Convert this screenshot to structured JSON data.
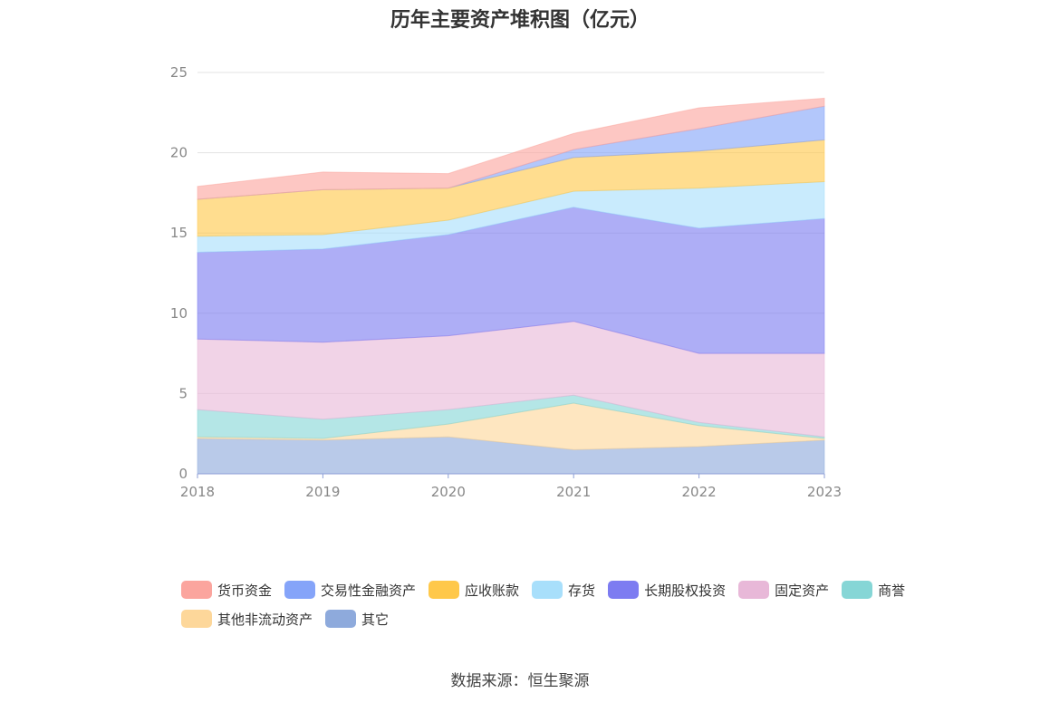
{
  "chart_data": {
    "type": "area",
    "stacked": true,
    "title": "历年主要资产堆积图（亿元）",
    "categories": [
      "2018",
      "2019",
      "2020",
      "2021",
      "2022",
      "2023"
    ],
    "ylim": [
      0,
      25
    ],
    "yticks": [
      "0",
      "5",
      "10",
      "15",
      "20",
      "25"
    ],
    "grid": true,
    "legend_position": "bottom",
    "series": [
      {
        "name": "其它",
        "color": "#8eaadc",
        "values": [
          2.2,
          2.1,
          2.3,
          1.5,
          1.7,
          2.1
        ]
      },
      {
        "name": "其他非流动资产",
        "color": "#fdd79a",
        "values": [
          0.1,
          0.1,
          0.8,
          2.9,
          1.3,
          0.1
        ]
      },
      {
        "name": "商誉",
        "color": "#86d6d6",
        "values": [
          1.7,
          1.2,
          0.9,
          0.5,
          0.2,
          0.1
        ]
      },
      {
        "name": "固定资产",
        "color": "#e8b8d8",
        "values": [
          4.4,
          4.8,
          4.6,
          4.6,
          4.3,
          5.2
        ]
      },
      {
        "name": "长期股权投资",
        "color": "#7d7cf1",
        "values": [
          5.4,
          5.8,
          6.3,
          7.1,
          7.8,
          8.4
        ]
      },
      {
        "name": "存货",
        "color": "#a8dffb",
        "values": [
          1.0,
          0.9,
          0.9,
          1.0,
          2.5,
          2.3
        ]
      },
      {
        "name": "应收账款",
        "color": "#ffc84a",
        "values": [
          2.3,
          2.8,
          2.0,
          2.1,
          2.3,
          2.6
        ]
      },
      {
        "name": "交易性金融资产",
        "color": "#85a4f9",
        "values": [
          0.0,
          0.0,
          0.0,
          0.5,
          1.4,
          2.1
        ]
      },
      {
        "name": "货币资金",
        "color": "#fba59e",
        "values": [
          0.8,
          1.1,
          0.9,
          1.0,
          1.3,
          0.5
        ]
      }
    ]
  },
  "legend": {
    "row1": [
      {
        "label": "货币资金",
        "color": "#fba59e"
      },
      {
        "label": "交易性金融资产",
        "color": "#85a4f9"
      },
      {
        "label": "应收账款",
        "color": "#ffc84a"
      },
      {
        "label": "存货",
        "color": "#a8dffb"
      },
      {
        "label": "长期股权投资",
        "color": "#7d7cf1"
      },
      {
        "label": "固定资产",
        "color": "#e8b8d8"
      }
    ],
    "row2": [
      {
        "label": "商誉",
        "color": "#86d6d6"
      },
      {
        "label": "其他非流动资产",
        "color": "#fdd79a"
      },
      {
        "label": "其它",
        "color": "#8eaadc"
      }
    ]
  },
  "footer": {
    "source": "数据来源：恒生聚源"
  }
}
